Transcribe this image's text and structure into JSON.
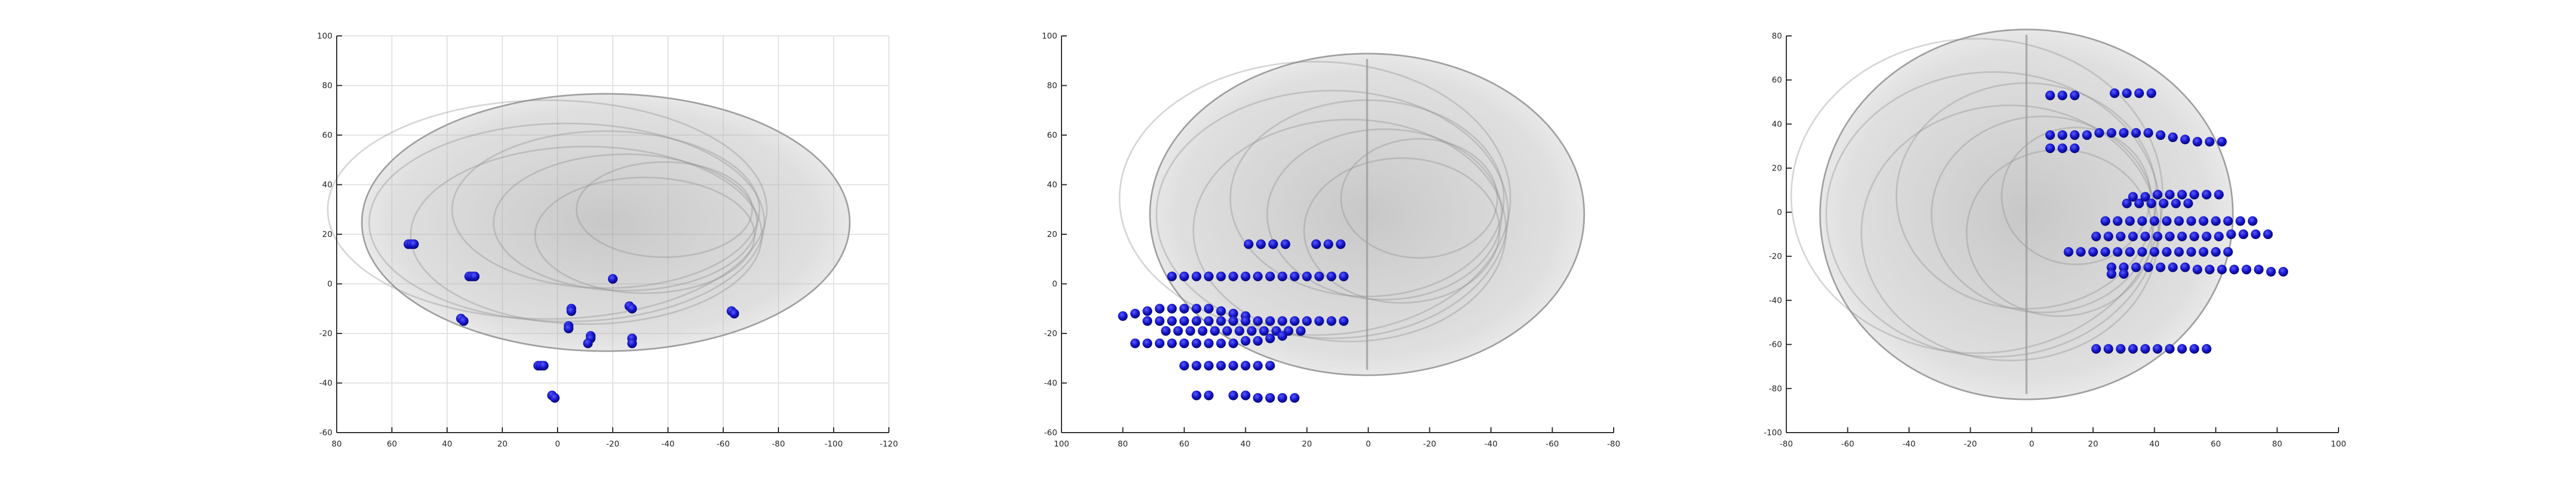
{
  "chart_data": [
    {
      "type": "scatter",
      "view": "sagittal",
      "xlim": [
        80,
        -120
      ],
      "ylim": [
        -60,
        100
      ],
      "xticks": [
        80,
        60,
        40,
        20,
        0,
        -20,
        -40,
        -60,
        -80,
        -100,
        -120
      ],
      "yticks": [
        -60,
        -40,
        -20,
        0,
        20,
        40,
        60,
        80,
        100
      ],
      "grid": true,
      "series": [
        {
          "color": "#1414c8",
          "points": [
            [
              54,
              16
            ],
            [
              53,
              16
            ],
            [
              52,
              16
            ],
            [
              32,
              3
            ],
            [
              31,
              3
            ],
            [
              30,
              3
            ],
            [
              35,
              -14
            ],
            [
              34,
              -15
            ],
            [
              7,
              -33
            ],
            [
              6,
              -33
            ],
            [
              5,
              -33
            ],
            [
              2,
              -45
            ],
            [
              1,
              -46
            ],
            [
              -5,
              -10
            ],
            [
              -5,
              -11
            ],
            [
              -4,
              -17
            ],
            [
              -4,
              -18
            ],
            [
              -12,
              -21
            ],
            [
              -12,
              -22
            ],
            [
              -11,
              -24
            ],
            [
              -20,
              2
            ],
            [
              -26,
              -9
            ],
            [
              -27,
              -10
            ],
            [
              -27,
              -22
            ],
            [
              -27,
              -24
            ],
            [
              -63,
              -11
            ],
            [
              -64,
              -12
            ]
          ]
        }
      ]
    },
    {
      "type": "scatter",
      "view": "coronal",
      "xlim": [
        100,
        -80
      ],
      "ylim": [
        -60,
        100
      ],
      "xticks": [
        100,
        80,
        60,
        40,
        20,
        0,
        -20,
        -40,
        -60,
        -80
      ],
      "yticks": [
        -60,
        -40,
        -20,
        0,
        20,
        40,
        60,
        80,
        100
      ],
      "grid": false,
      "series": [
        {
          "color": "#1414c8",
          "points": [
            [
              39,
              16
            ],
            [
              35,
              16
            ],
            [
              31,
              16
            ],
            [
              27,
              16
            ],
            [
              17,
              16
            ],
            [
              13,
              16
            ],
            [
              9,
              16
            ],
            [
              64,
              3
            ],
            [
              60,
              3
            ],
            [
              56,
              3
            ],
            [
              52,
              3
            ],
            [
              48,
              3
            ],
            [
              44,
              3
            ],
            [
              40,
              3
            ],
            [
              36,
              3
            ],
            [
              32,
              3
            ],
            [
              28,
              3
            ],
            [
              24,
              3
            ],
            [
              20,
              3
            ],
            [
              16,
              3
            ],
            [
              12,
              3
            ],
            [
              8,
              3
            ],
            [
              80,
              -13
            ],
            [
              76,
              -12
            ],
            [
              72,
              -11
            ],
            [
              68,
              -10
            ],
            [
              64,
              -10
            ],
            [
              60,
              -10
            ],
            [
              56,
              -10
            ],
            [
              52,
              -10
            ],
            [
              48,
              -11
            ],
            [
              44,
              -12
            ],
            [
              40,
              -13
            ],
            [
              72,
              -15
            ],
            [
              68,
              -15
            ],
            [
              64,
              -15
            ],
            [
              60,
              -15
            ],
            [
              56,
              -15
            ],
            [
              52,
              -15
            ],
            [
              48,
              -15
            ],
            [
              44,
              -15
            ],
            [
              40,
              -15
            ],
            [
              36,
              -15
            ],
            [
              32,
              -15
            ],
            [
              28,
              -15
            ],
            [
              24,
              -15
            ],
            [
              20,
              -15
            ],
            [
              16,
              -15
            ],
            [
              12,
              -15
            ],
            [
              8,
              -15
            ],
            [
              66,
              -19
            ],
            [
              62,
              -19
            ],
            [
              58,
              -19
            ],
            [
              54,
              -19
            ],
            [
              50,
              -19
            ],
            [
              46,
              -19
            ],
            [
              42,
              -19
            ],
            [
              38,
              -19
            ],
            [
              34,
              -19
            ],
            [
              30,
              -19
            ],
            [
              26,
              -19
            ],
            [
              22,
              -19
            ],
            [
              76,
              -24
            ],
            [
              72,
              -24
            ],
            [
              68,
              -24
            ],
            [
              64,
              -24
            ],
            [
              60,
              -24
            ],
            [
              56,
              -24
            ],
            [
              52,
              -24
            ],
            [
              48,
              -24
            ],
            [
              44,
              -24
            ],
            [
              40,
              -23
            ],
            [
              36,
              -23
            ],
            [
              32,
              -22
            ],
            [
              28,
              -21
            ],
            [
              60,
              -33
            ],
            [
              56,
              -33
            ],
            [
              52,
              -33
            ],
            [
              48,
              -33
            ],
            [
              44,
              -33
            ],
            [
              40,
              -33
            ],
            [
              36,
              -33
            ],
            [
              32,
              -33
            ],
            [
              56,
              -45
            ],
            [
              52,
              -45
            ],
            [
              44,
              -45
            ],
            [
              40,
              -45
            ],
            [
              36,
              -46
            ],
            [
              32,
              -46
            ],
            [
              28,
              -46
            ],
            [
              24,
              -46
            ]
          ]
        }
      ]
    },
    {
      "type": "scatter",
      "view": "axial",
      "xlim": [
        -80,
        100
      ],
      "ylim": [
        -100,
        80
      ],
      "xticks": [
        -80,
        -60,
        -40,
        -20,
        0,
        20,
        40,
        60,
        80,
        100
      ],
      "yticks": [
        -100,
        -80,
        -60,
        -40,
        -20,
        0,
        20,
        40,
        60,
        80
      ],
      "grid": false,
      "series": [
        {
          "color": "#1414c8",
          "points": [
            [
              6,
              53
            ],
            [
              10,
              53
            ],
            [
              14,
              53
            ],
            [
              27,
              54
            ],
            [
              31,
              54
            ],
            [
              35,
              54
            ],
            [
              39,
              54
            ],
            [
              6,
              35
            ],
            [
              10,
              35
            ],
            [
              14,
              35
            ],
            [
              18,
              35
            ],
            [
              22,
              36
            ],
            [
              26,
              36
            ],
            [
              30,
              36
            ],
            [
              34,
              36
            ],
            [
              38,
              36
            ],
            [
              42,
              35
            ],
            [
              46,
              34
            ],
            [
              50,
              33
            ],
            [
              54,
              32
            ],
            [
              58,
              32
            ],
            [
              62,
              32
            ],
            [
              6,
              29
            ],
            [
              10,
              29
            ],
            [
              14,
              29
            ],
            [
              33,
              7
            ],
            [
              37,
              7
            ],
            [
              41,
              8
            ],
            [
              45,
              8
            ],
            [
              49,
              8
            ],
            [
              53,
              8
            ],
            [
              57,
              8
            ],
            [
              61,
              8
            ],
            [
              31,
              4
            ],
            [
              35,
              4
            ],
            [
              39,
              4
            ],
            [
              43,
              4
            ],
            [
              47,
              4
            ],
            [
              51,
              4
            ],
            [
              24,
              -4
            ],
            [
              28,
              -4
            ],
            [
              32,
              -4
            ],
            [
              36,
              -4
            ],
            [
              40,
              -4
            ],
            [
              44,
              -4
            ],
            [
              48,
              -4
            ],
            [
              52,
              -4
            ],
            [
              56,
              -4
            ],
            [
              60,
              -4
            ],
            [
              64,
              -4
            ],
            [
              68,
              -4
            ],
            [
              72,
              -4
            ],
            [
              21,
              -11
            ],
            [
              25,
              -11
            ],
            [
              29,
              -11
            ],
            [
              33,
              -11
            ],
            [
              37,
              -11
            ],
            [
              41,
              -11
            ],
            [
              45,
              -11
            ],
            [
              49,
              -11
            ],
            [
              53,
              -11
            ],
            [
              57,
              -11
            ],
            [
              61,
              -11
            ],
            [
              65,
              -10
            ],
            [
              69,
              -10
            ],
            [
              73,
              -10
            ],
            [
              77,
              -10
            ],
            [
              12,
              -18
            ],
            [
              16,
              -18
            ],
            [
              20,
              -18
            ],
            [
              24,
              -18
            ],
            [
              28,
              -18
            ],
            [
              32,
              -18
            ],
            [
              36,
              -18
            ],
            [
              40,
              -18
            ],
            [
              44,
              -18
            ],
            [
              48,
              -18
            ],
            [
              52,
              -18
            ],
            [
              56,
              -18
            ],
            [
              60,
              -18
            ],
            [
              64,
              -18
            ],
            [
              26,
              -25
            ],
            [
              30,
              -25
            ],
            [
              34,
              -25
            ],
            [
              38,
              -25
            ],
            [
              42,
              -25
            ],
            [
              46,
              -25
            ],
            [
              50,
              -25
            ],
            [
              54,
              -26
            ],
            [
              58,
              -26
            ],
            [
              62,
              -26
            ],
            [
              66,
              -26
            ],
            [
              70,
              -26
            ],
            [
              74,
              -26
            ],
            [
              78,
              -27
            ],
            [
              82,
              -27
            ],
            [
              26,
              -28
            ],
            [
              30,
              -28
            ],
            [
              21,
              -62
            ],
            [
              25,
              -62
            ],
            [
              29,
              -62
            ],
            [
              33,
              -62
            ],
            [
              37,
              -62
            ],
            [
              41,
              -62
            ],
            [
              45,
              -62
            ],
            [
              49,
              -62
            ],
            [
              53,
              -62
            ],
            [
              57,
              -62
            ]
          ]
        }
      ]
    }
  ]
}
